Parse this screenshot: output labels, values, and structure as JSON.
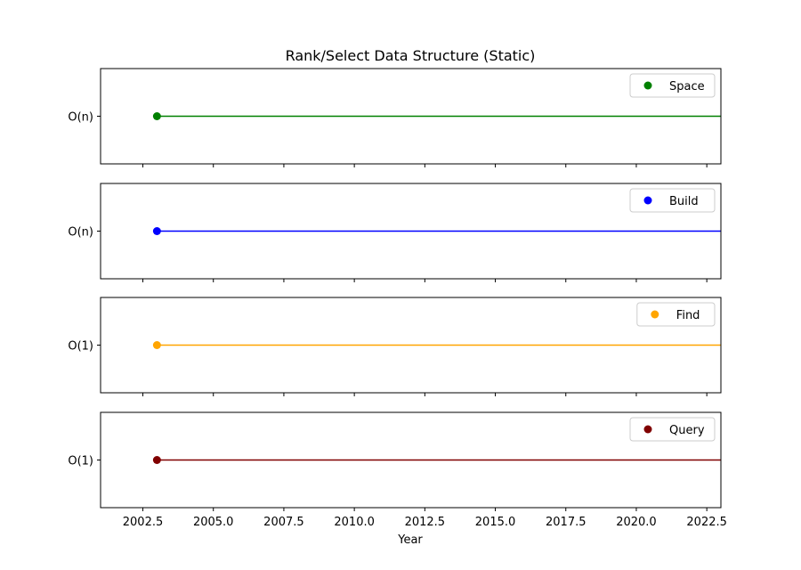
{
  "chart_data": {
    "type": "line",
    "title": "Rank/Select Data Structure (Static)",
    "xlabel": "Year",
    "xlim": [
      2001,
      2023
    ],
    "xticks": [
      "2002.5",
      "2005.0",
      "2007.5",
      "2010.0",
      "2012.5",
      "2015.0",
      "2017.5",
      "2020.0",
      "2022.5"
    ],
    "xtick_values": [
      2002.5,
      2005.0,
      2007.5,
      2010.0,
      2012.5,
      2015.0,
      2017.5,
      2020.0,
      2022.5
    ],
    "legend_position": "top-right",
    "panels": [
      {
        "name": "Space",
        "ylabel": "O(n)",
        "color": "#008000",
        "x": [
          2003,
          2023
        ]
      },
      {
        "name": "Build",
        "ylabel": "O(n)",
        "color": "#0000ff",
        "x": [
          2003,
          2023
        ]
      },
      {
        "name": "Find",
        "ylabel": "O(1)",
        "color": "#ffa500",
        "x": [
          2003,
          2023
        ]
      },
      {
        "name": "Query",
        "ylabel": "O(1)",
        "color": "#800000",
        "x": [
          2003,
          2023
        ]
      }
    ]
  }
}
